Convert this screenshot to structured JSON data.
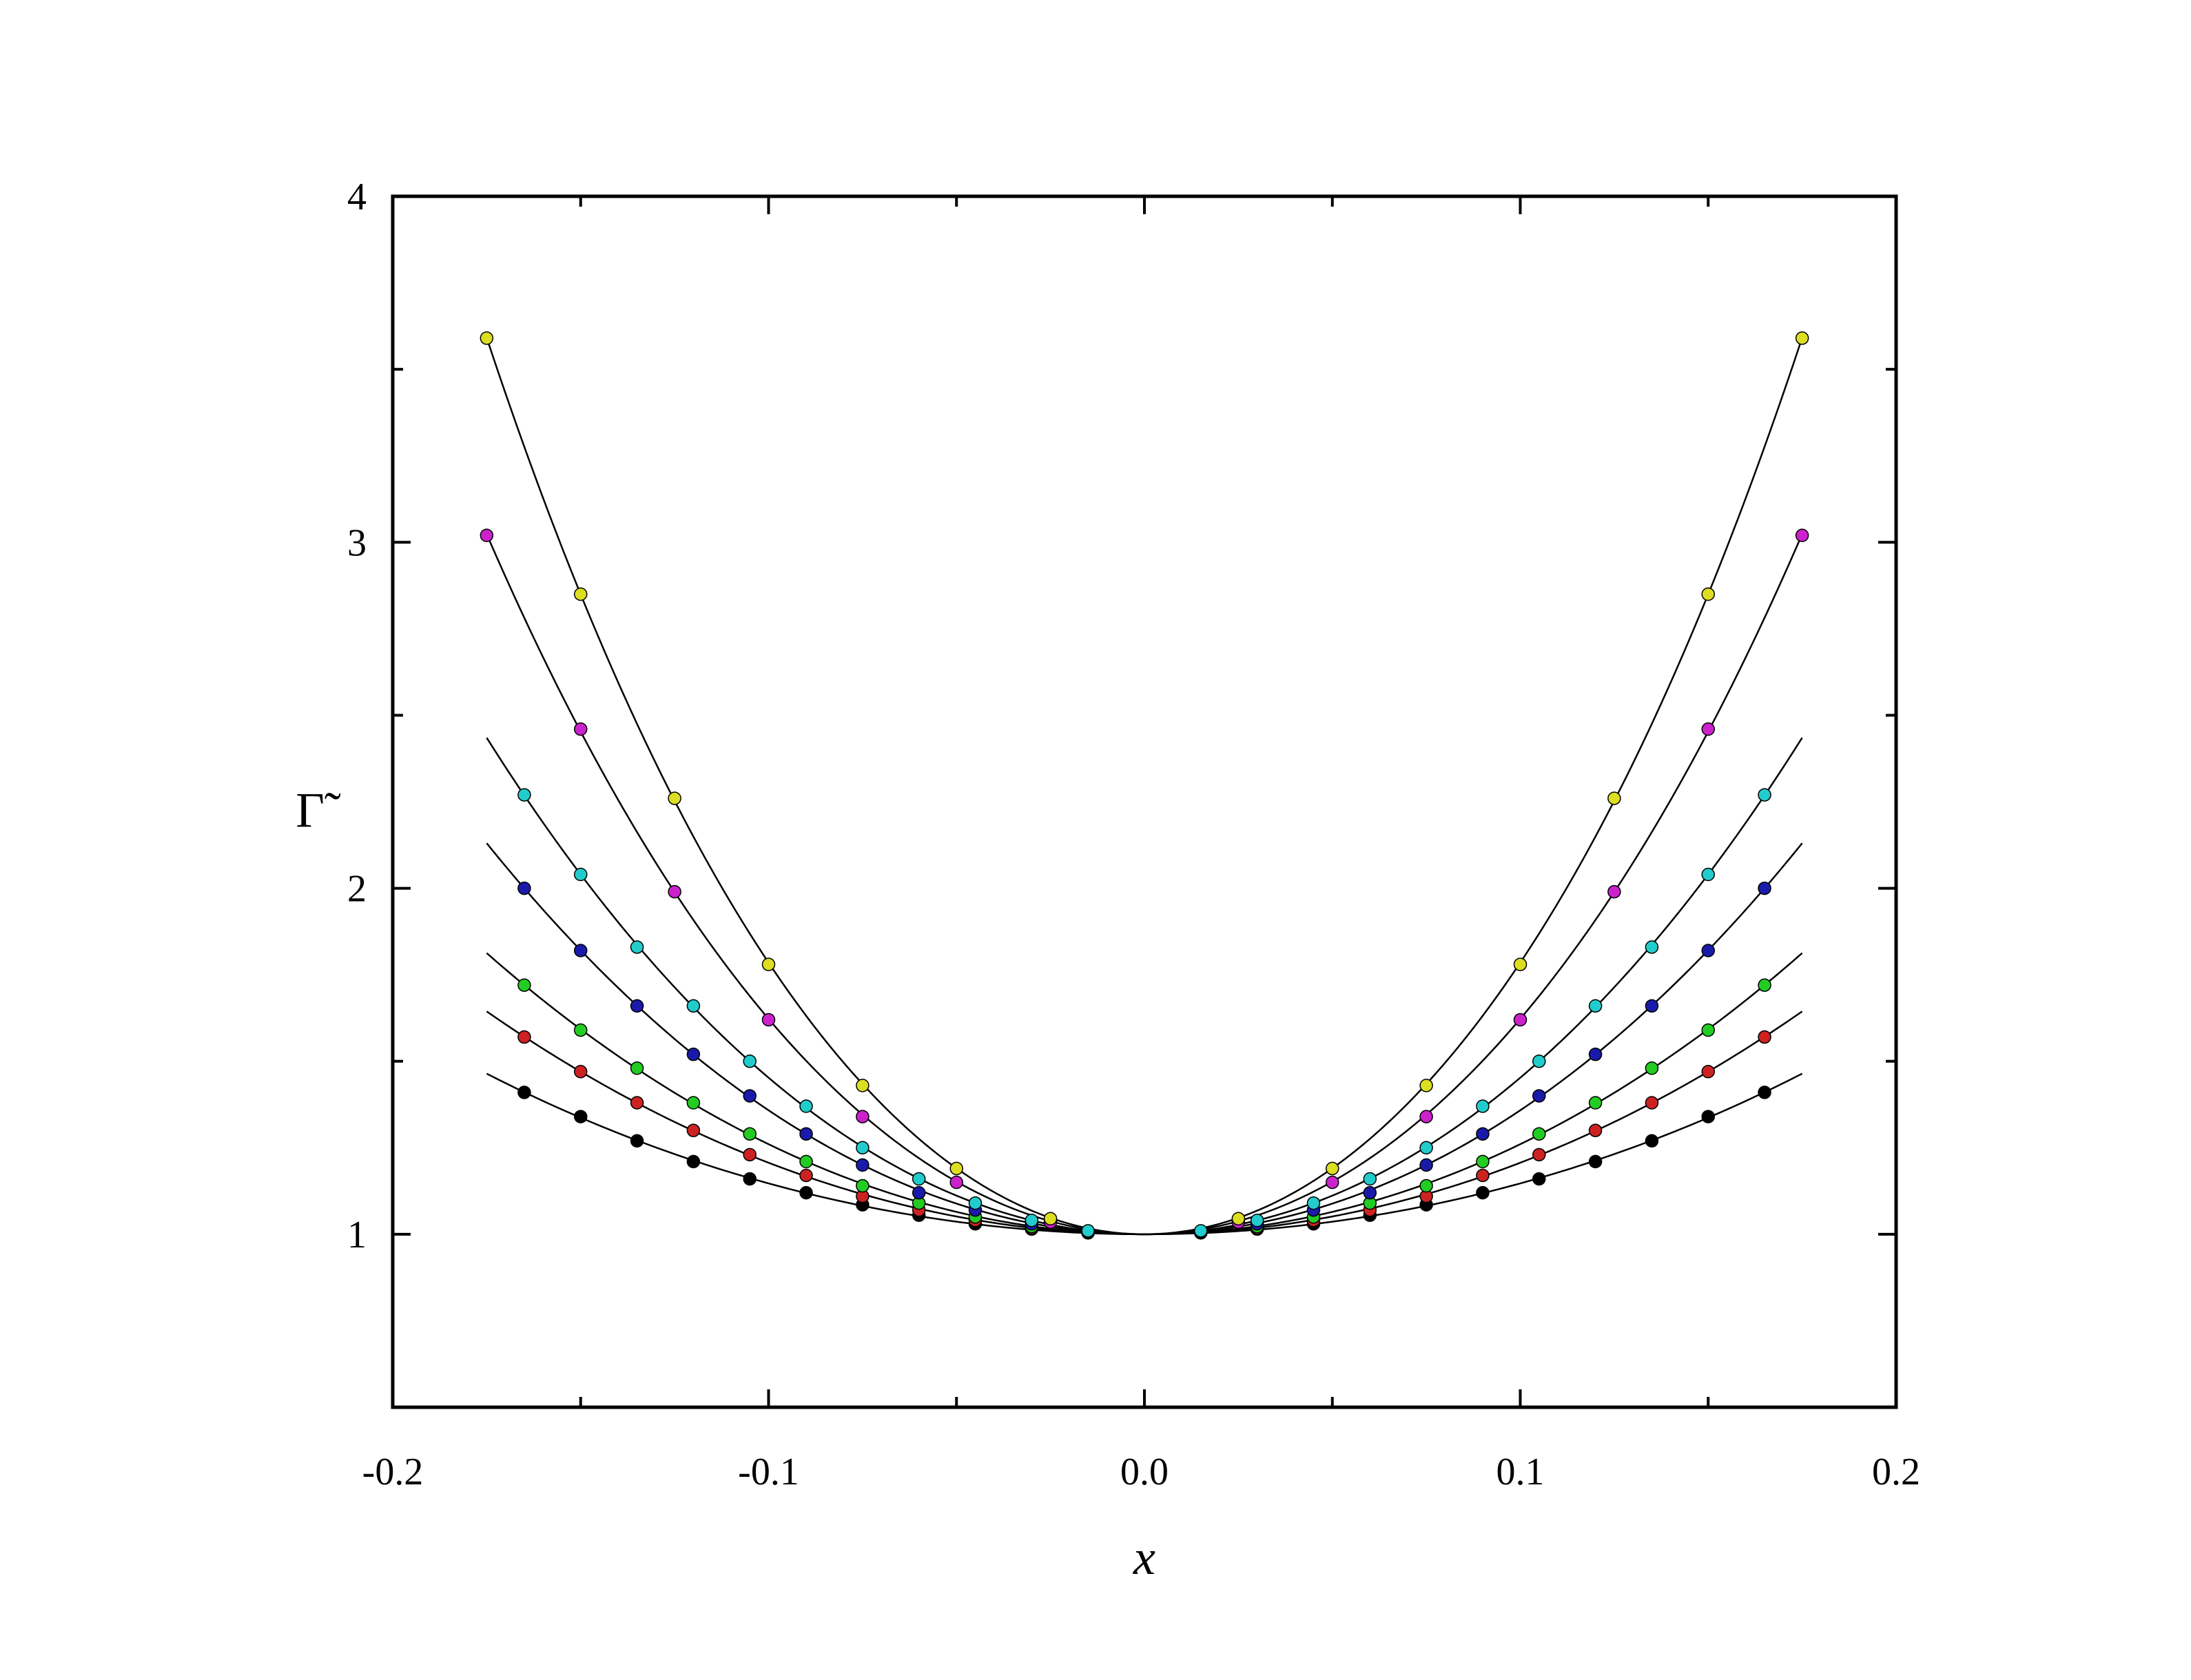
{
  "chart_data": {
    "type": "line",
    "title": "",
    "xlabel": "x",
    "ylabel": "Γ̃",
    "xlim": [
      -0.2,
      0.2
    ],
    "ylim": [
      0.5,
      4
    ],
    "xticks": [
      -0.2,
      -0.1,
      0.0,
      0.1,
      0.2
    ],
    "xtick_labels": [
      "-0.2",
      "-0.1",
      "0.0",
      "0.1",
      "0.2"
    ],
    "yticks": [
      1,
      2,
      3,
      4
    ],
    "ytick_labels": [
      "1",
      "2",
      "3",
      "4"
    ],
    "grid": false,
    "legend": "none",
    "series": [
      {
        "color": "#000000",
        "x": [
          -0.165,
          -0.15,
          -0.135,
          -0.12,
          -0.105,
          -0.09,
          -0.075,
          -0.06,
          -0.045,
          -0.03,
          -0.015,
          0.015,
          0.03,
          0.045,
          0.06,
          0.075,
          0.09,
          0.105,
          0.12,
          0.135,
          0.15,
          0.165
        ],
        "y": [
          1.41,
          1.34,
          1.27,
          1.21,
          1.16,
          1.12,
          1.085,
          1.055,
          1.03,
          1.015,
          1.004,
          1.004,
          1.015,
          1.03,
          1.055,
          1.085,
          1.12,
          1.16,
          1.21,
          1.27,
          1.34,
          1.41
        ]
      },
      {
        "color": "#cc2222",
        "x": [
          -0.165,
          -0.15,
          -0.135,
          -0.12,
          -0.105,
          -0.09,
          -0.075,
          -0.06,
          -0.045,
          -0.03,
          -0.015,
          0.015,
          0.03,
          0.045,
          0.06,
          0.075,
          0.09,
          0.105,
          0.12,
          0.135,
          0.15,
          0.165
        ],
        "y": [
          1.57,
          1.47,
          1.38,
          1.3,
          1.23,
          1.17,
          1.11,
          1.07,
          1.04,
          1.018,
          1.005,
          1.005,
          1.018,
          1.04,
          1.07,
          1.11,
          1.17,
          1.23,
          1.3,
          1.38,
          1.47,
          1.57
        ]
      },
      {
        "color": "#22cc22",
        "x": [
          -0.165,
          -0.15,
          -0.135,
          -0.12,
          -0.105,
          -0.09,
          -0.075,
          -0.06,
          -0.045,
          -0.03,
          -0.015,
          0.015,
          0.03,
          0.045,
          0.06,
          0.075,
          0.09,
          0.105,
          0.12,
          0.135,
          0.15,
          0.165
        ],
        "y": [
          1.72,
          1.59,
          1.48,
          1.38,
          1.29,
          1.21,
          1.14,
          1.09,
          1.05,
          1.022,
          1.006,
          1.006,
          1.022,
          1.05,
          1.09,
          1.14,
          1.21,
          1.29,
          1.38,
          1.48,
          1.59,
          1.72
        ]
      },
      {
        "color": "#1a1aaa",
        "x": [
          -0.165,
          -0.15,
          -0.135,
          -0.12,
          -0.105,
          -0.09,
          -0.075,
          -0.06,
          -0.045,
          -0.03,
          -0.015,
          0.015,
          0.03,
          0.045,
          0.06,
          0.075,
          0.09,
          0.105,
          0.12,
          0.135,
          0.15,
          0.165
        ],
        "y": [
          2.0,
          1.82,
          1.66,
          1.52,
          1.4,
          1.29,
          1.2,
          1.12,
          1.07,
          1.03,
          1.008,
          1.008,
          1.03,
          1.07,
          1.12,
          1.2,
          1.29,
          1.4,
          1.52,
          1.66,
          1.82,
          2.0
        ]
      },
      {
        "color": "#22cccc",
        "x": [
          -0.165,
          -0.15,
          -0.135,
          -0.12,
          -0.105,
          -0.09,
          -0.075,
          -0.06,
          -0.045,
          -0.03,
          -0.015,
          0.015,
          0.03,
          0.045,
          0.06,
          0.075,
          0.09,
          0.105,
          0.12,
          0.135,
          0.15,
          0.165
        ],
        "y": [
          2.27,
          2.04,
          1.83,
          1.66,
          1.5,
          1.37,
          1.25,
          1.16,
          1.09,
          1.04,
          1.01,
          1.01,
          1.04,
          1.09,
          1.16,
          1.25,
          1.37,
          1.5,
          1.66,
          1.83,
          2.04,
          2.27
        ]
      },
      {
        "color": "#cc22cc",
        "x": [
          -0.175,
          -0.15,
          -0.125,
          -0.1,
          -0.075,
          -0.05,
          -0.025,
          0.025,
          0.05,
          0.075,
          0.1,
          0.125,
          0.15,
          0.175
        ],
        "y": [
          3.02,
          2.46,
          1.99,
          1.62,
          1.34,
          1.15,
          1.035,
          1.035,
          1.15,
          1.34,
          1.62,
          1.99,
          2.46,
          3.02
        ]
      },
      {
        "color": "#dddd22",
        "x": [
          -0.175,
          -0.15,
          -0.125,
          -0.1,
          -0.075,
          -0.05,
          -0.025,
          0.025,
          0.05,
          0.075,
          0.1,
          0.125,
          0.15,
          0.175
        ],
        "y": [
          3.59,
          2.85,
          2.26,
          1.78,
          1.43,
          1.19,
          1.045,
          1.045,
          1.19,
          1.43,
          1.78,
          2.26,
          2.85,
          3.59
        ]
      }
    ]
  }
}
